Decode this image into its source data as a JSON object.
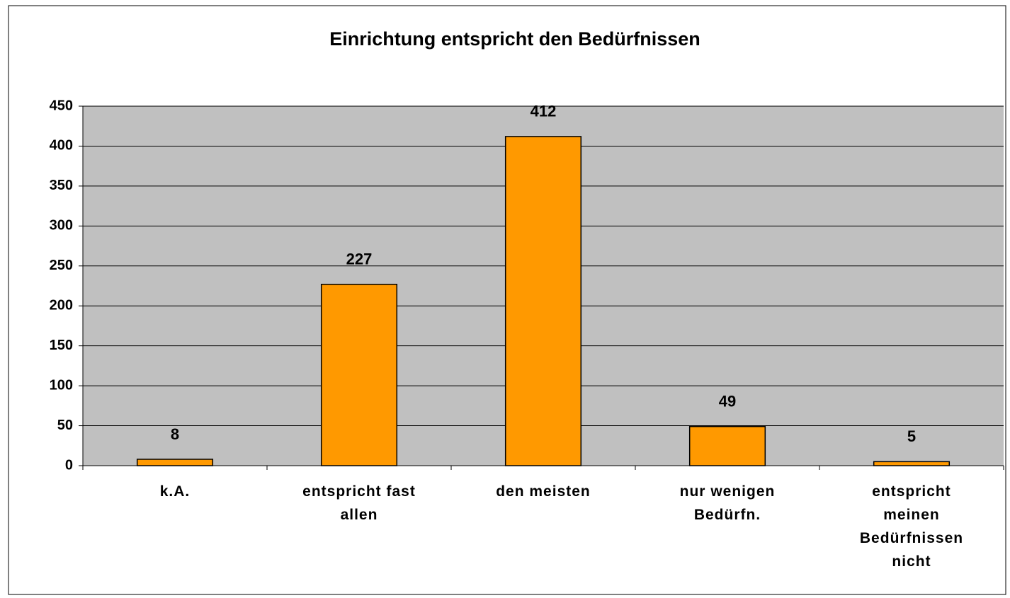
{
  "chart_data": {
    "type": "bar",
    "title": "Einrichtung entspricht den Bedürfnissen",
    "categories": [
      "k.A.",
      "entspricht fast\nallen",
      "den meisten",
      "nur wenigen\nBedürfn.",
      "entspricht\nmeinen\nBedürfnissen\nnicht"
    ],
    "values": [
      8,
      227,
      412,
      49,
      5
    ],
    "color": "#ff9900",
    "ylim": [
      0,
      450
    ],
    "yticks": [
      0,
      50,
      100,
      150,
      200,
      250,
      300,
      350,
      400,
      450
    ],
    "grid": true
  }
}
